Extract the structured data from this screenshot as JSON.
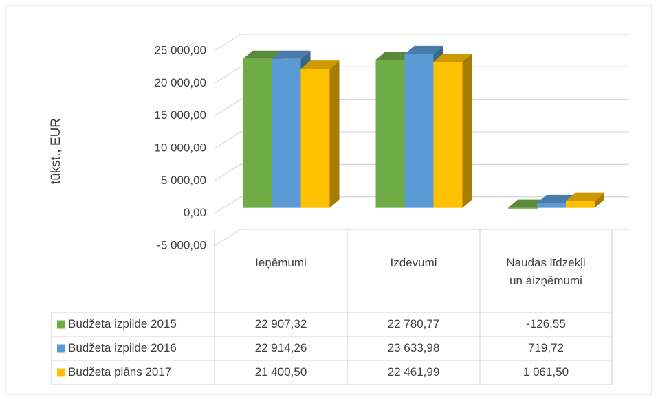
{
  "chart_data": {
    "type": "bar3d",
    "y_label": "tūkst., EUR",
    "categories": [
      "Ieņēmumi",
      "Izdevumi",
      "Naudas līdzekļi un aizņēmumi"
    ],
    "series": [
      {
        "name": "Budžeta izpilde 2015",
        "color": "#70ad47",
        "values": [
          22907.32,
          22780.77,
          -126.55
        ],
        "value_labels": [
          "22 907,32",
          "22 780,77",
          "-126,55"
        ]
      },
      {
        "name": "Budžeta izpilde 2016",
        "color": "#5b9bd5",
        "values": [
          22914.26,
          23633.98,
          719.72
        ],
        "value_labels": [
          "22 914,26",
          "23 633,98",
          "719,72"
        ]
      },
      {
        "name": "Budžeta plāns 2017",
        "color": "#ffc000",
        "values": [
          21400.5,
          22461.99,
          1061.5
        ],
        "value_labels": [
          "21 400,50",
          "22 461,99",
          "1 061,50"
        ]
      }
    ],
    "ylim": [
      -5000,
      25000
    ],
    "yticks": [
      {
        "value": -5000,
        "label": "-5 000,00"
      },
      {
        "value": 0,
        "label": "0,00"
      },
      {
        "value": 5000,
        "label": "5 000,00"
      },
      {
        "value": 10000,
        "label": "10 000,00"
      },
      {
        "value": 15000,
        "label": "15 000,00"
      },
      {
        "value": 20000,
        "label": "20 000,00"
      },
      {
        "value": 25000,
        "label": "25 000,00"
      }
    ],
    "grid": true
  }
}
